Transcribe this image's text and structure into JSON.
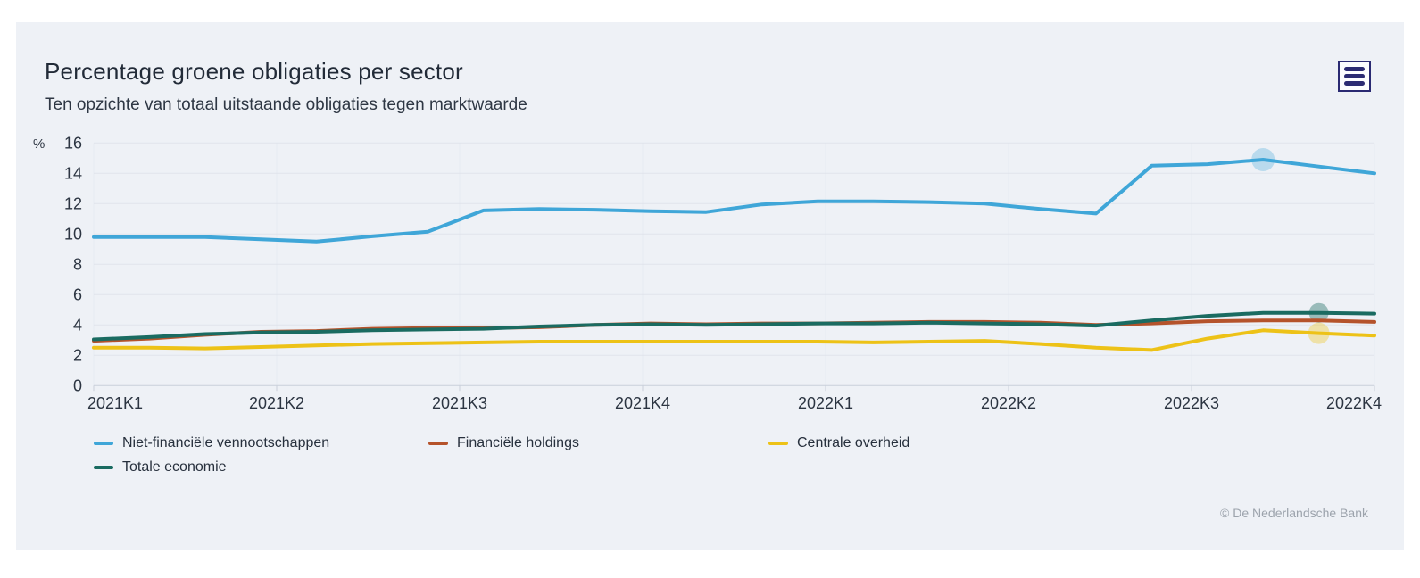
{
  "card": {
    "title": "Percentage groene obligaties per sector",
    "subtitle": "Ten opzichte van totaal uitstaande obligaties tegen marktwaarde",
    "copyright": "© De Nederlandsche Bank"
  },
  "menu": {
    "icon": "hamburger-menu-icon",
    "color": "#2a2a72"
  },
  "colors": {
    "card_background": "#eef1f6",
    "page_background": "#ffffff",
    "gridline": "#e0e4eb",
    "vertical_gridline": "#e7ebf1",
    "axis_line": "#c9d0da",
    "axis_text": "#2c3542",
    "title_text": "#222b38",
    "copyright_text": "#9ca3ac"
  },
  "chart_data": {
    "type": "line",
    "title": "Percentage groene obligaties per sector",
    "subtitle": "Ten opzichte van totaal uitstaande obligaties tegen marktwaarde",
    "ylabel": "%",
    "ylim": [
      0,
      16
    ],
    "yticks": [
      0,
      2,
      4,
      6,
      8,
      10,
      12,
      14,
      16
    ],
    "xtick_labels": [
      "2021K1",
      "2021K2",
      "2021K3",
      "2021K4",
      "2022K1",
      "2022K2",
      "2022K3",
      "2022K4"
    ],
    "x_months": [
      "2021-01",
      "2021-02",
      "2021-03",
      "2021-04",
      "2021-05",
      "2021-06",
      "2021-07",
      "2021-08",
      "2021-09",
      "2021-10",
      "2021-11",
      "2021-12",
      "2022-01",
      "2022-02",
      "2022-03",
      "2022-04",
      "2022-05",
      "2022-06",
      "2022-07",
      "2022-08",
      "2022-09",
      "2022-10",
      "2022-11",
      "2022-12"
    ],
    "grid": "horizontal-solid, vertical-faint-at-quarters",
    "legend_position": "bottom-left",
    "series": [
      {
        "name": "Niet-financiële vennootschappen",
        "color": "#3fa6d8",
        "values": [
          9.8,
          9.8,
          9.8,
          9.65,
          9.5,
          9.85,
          10.15,
          11.55,
          11.65,
          11.6,
          11.5,
          11.45,
          11.95,
          12.15,
          12.15,
          12.1,
          12.0,
          11.65,
          11.35,
          14.5,
          14.6,
          14.9,
          14.45,
          14.0
        ],
        "highlight": {
          "index": 21,
          "radius": 13,
          "opacity": 0.3
        }
      },
      {
        "name": "Financiële holdings",
        "color": "#b5532b",
        "values": [
          2.95,
          3.1,
          3.35,
          3.55,
          3.6,
          3.75,
          3.8,
          3.8,
          3.85,
          4.0,
          4.1,
          4.05,
          4.1,
          4.1,
          4.15,
          4.2,
          4.2,
          4.15,
          4.0,
          4.1,
          4.25,
          4.3,
          4.3,
          4.2
        ],
        "highlight": null
      },
      {
        "name": "Centrale overheid",
        "color": "#edc217",
        "values": [
          2.5,
          2.5,
          2.45,
          2.55,
          2.65,
          2.75,
          2.8,
          2.85,
          2.9,
          2.9,
          2.9,
          2.9,
          2.9,
          2.9,
          2.85,
          2.9,
          2.95,
          2.75,
          2.5,
          2.35,
          3.1,
          3.65,
          3.45,
          3.3
        ],
        "highlight": {
          "index": 22,
          "radius": 12,
          "opacity": 0.35
        }
      },
      {
        "name": "Totale economie",
        "color": "#1a6b61",
        "values": [
          3.05,
          3.2,
          3.4,
          3.5,
          3.55,
          3.65,
          3.7,
          3.75,
          3.9,
          4.0,
          4.05,
          4.0,
          4.05,
          4.1,
          4.1,
          4.15,
          4.1,
          4.05,
          3.95,
          4.3,
          4.6,
          4.8,
          4.8,
          4.75
        ],
        "highlight": {
          "index": 22,
          "radius": 11,
          "opacity": 0.4
        }
      }
    ]
  }
}
